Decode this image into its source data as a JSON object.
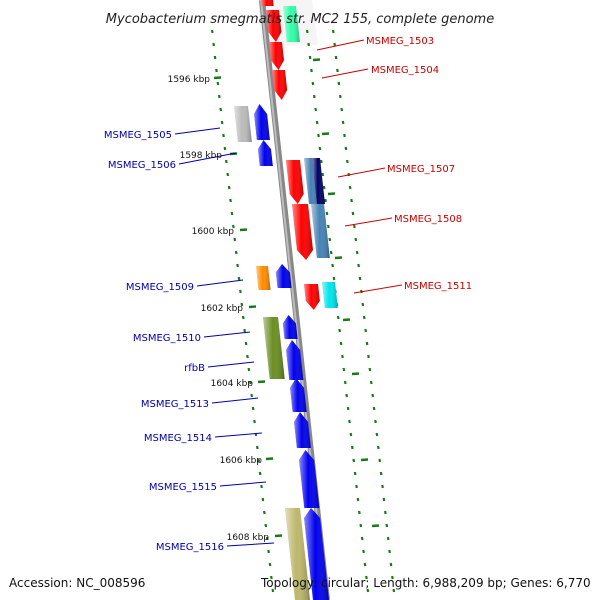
{
  "title": "Mycobacterium smegmatis str. MC2 155, complete genome",
  "footer": {
    "accession": "Accession: NC_008596",
    "topology": "Topology: circular; Length: 6,988,209 bp; Genes: 6,770"
  },
  "colors": {
    "plus_strand_label": "#cc0000",
    "minus_strand_label": "#0000aa",
    "tick": "#1a7a1a",
    "backbone": "#888888",
    "red": "#ff0000",
    "blue": "#0000ee",
    "seafoam": "#33ffaa",
    "grey": "#bbbbbb",
    "orange": "#ff8c00",
    "olive": "#6b8e23",
    "khaki": "#bdb76b",
    "navy": "#000066",
    "steelblue": "#4682b4",
    "cyan": "#00e5ee"
  },
  "kbp_ticks": [
    "1596 kbp",
    "1598 kbp",
    "1600 kbp",
    "1602 kbp",
    "1604 kbp",
    "1606 kbp",
    "1608 kbp"
  ],
  "gene_labels": {
    "MSMEG_1503": "MSMEG_1503",
    "MSMEG_1504": "MSMEG_1504",
    "MSMEG_1505": "MSMEG_1505",
    "MSMEG_1506": "MSMEG_1506",
    "MSMEG_1507": "MSMEG_1507",
    "MSMEG_1508": "MSMEG_1508",
    "MSMEG_1509": "MSMEG_1509",
    "MSMEG_1511": "MSMEG_1511",
    "MSMEG_1510": "MSMEG_1510",
    "rfbB": "rfbB",
    "MSMEG_1513": "MSMEG_1513",
    "MSMEG_1514": "MSMEG_1514",
    "MSMEG_1515": "MSMEG_1515",
    "MSMEG_1516": "MSMEG_1516"
  }
}
